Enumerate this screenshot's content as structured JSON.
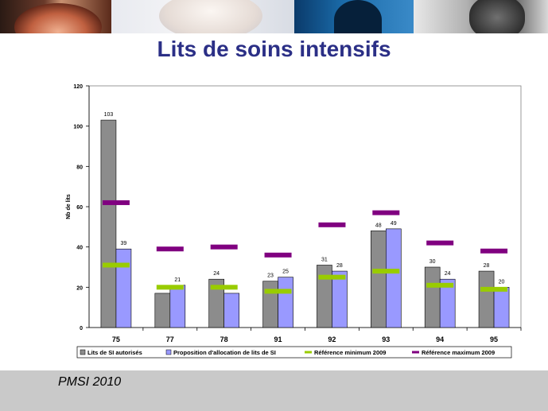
{
  "title": "Lits de soins intensifs",
  "footer": "PMSI 2010",
  "colors": {
    "title": "#2b2f86",
    "bar_authorized": "#8c8c8c",
    "bar_proposed": "#9999ff",
    "ref_min": "#99cc00",
    "ref_max": "#800080"
  },
  "chart_data": {
    "type": "bar",
    "categories": [
      "75",
      "77",
      "78",
      "91",
      "92",
      "93",
      "94",
      "95"
    ],
    "series": [
      {
        "name": "Lits de SI autorisés",
        "kind": "bar",
        "values": [
          103,
          17,
          24,
          23,
          31,
          48,
          30,
          28
        ],
        "labels": [
          "103",
          "17",
          "24",
          "23",
          "31",
          "48",
          "30",
          "28"
        ]
      },
      {
        "name": "Proposition d'allocation de lits de SI",
        "kind": "bar",
        "values": [
          39,
          21,
          17,
          25,
          28,
          49,
          24,
          20
        ],
        "labels": [
          "39",
          "21",
          "17",
          "25",
          "28",
          "49",
          "24",
          "20"
        ]
      },
      {
        "name": "Référence minimum 2009",
        "kind": "marker",
        "values": [
          31,
          20,
          20,
          18,
          25,
          28,
          21,
          19
        ]
      },
      {
        "name": "Référence maximum 2009",
        "kind": "marker",
        "values": [
          62,
          39,
          40,
          36,
          51,
          57,
          42,
          38
        ]
      }
    ],
    "ylabel": "Nb de lits",
    "ylim": [
      0,
      120
    ],
    "yticks": [
      "0",
      "20",
      "40",
      "60",
      "80",
      "100",
      "120"
    ],
    "legend_position": "bottom"
  }
}
